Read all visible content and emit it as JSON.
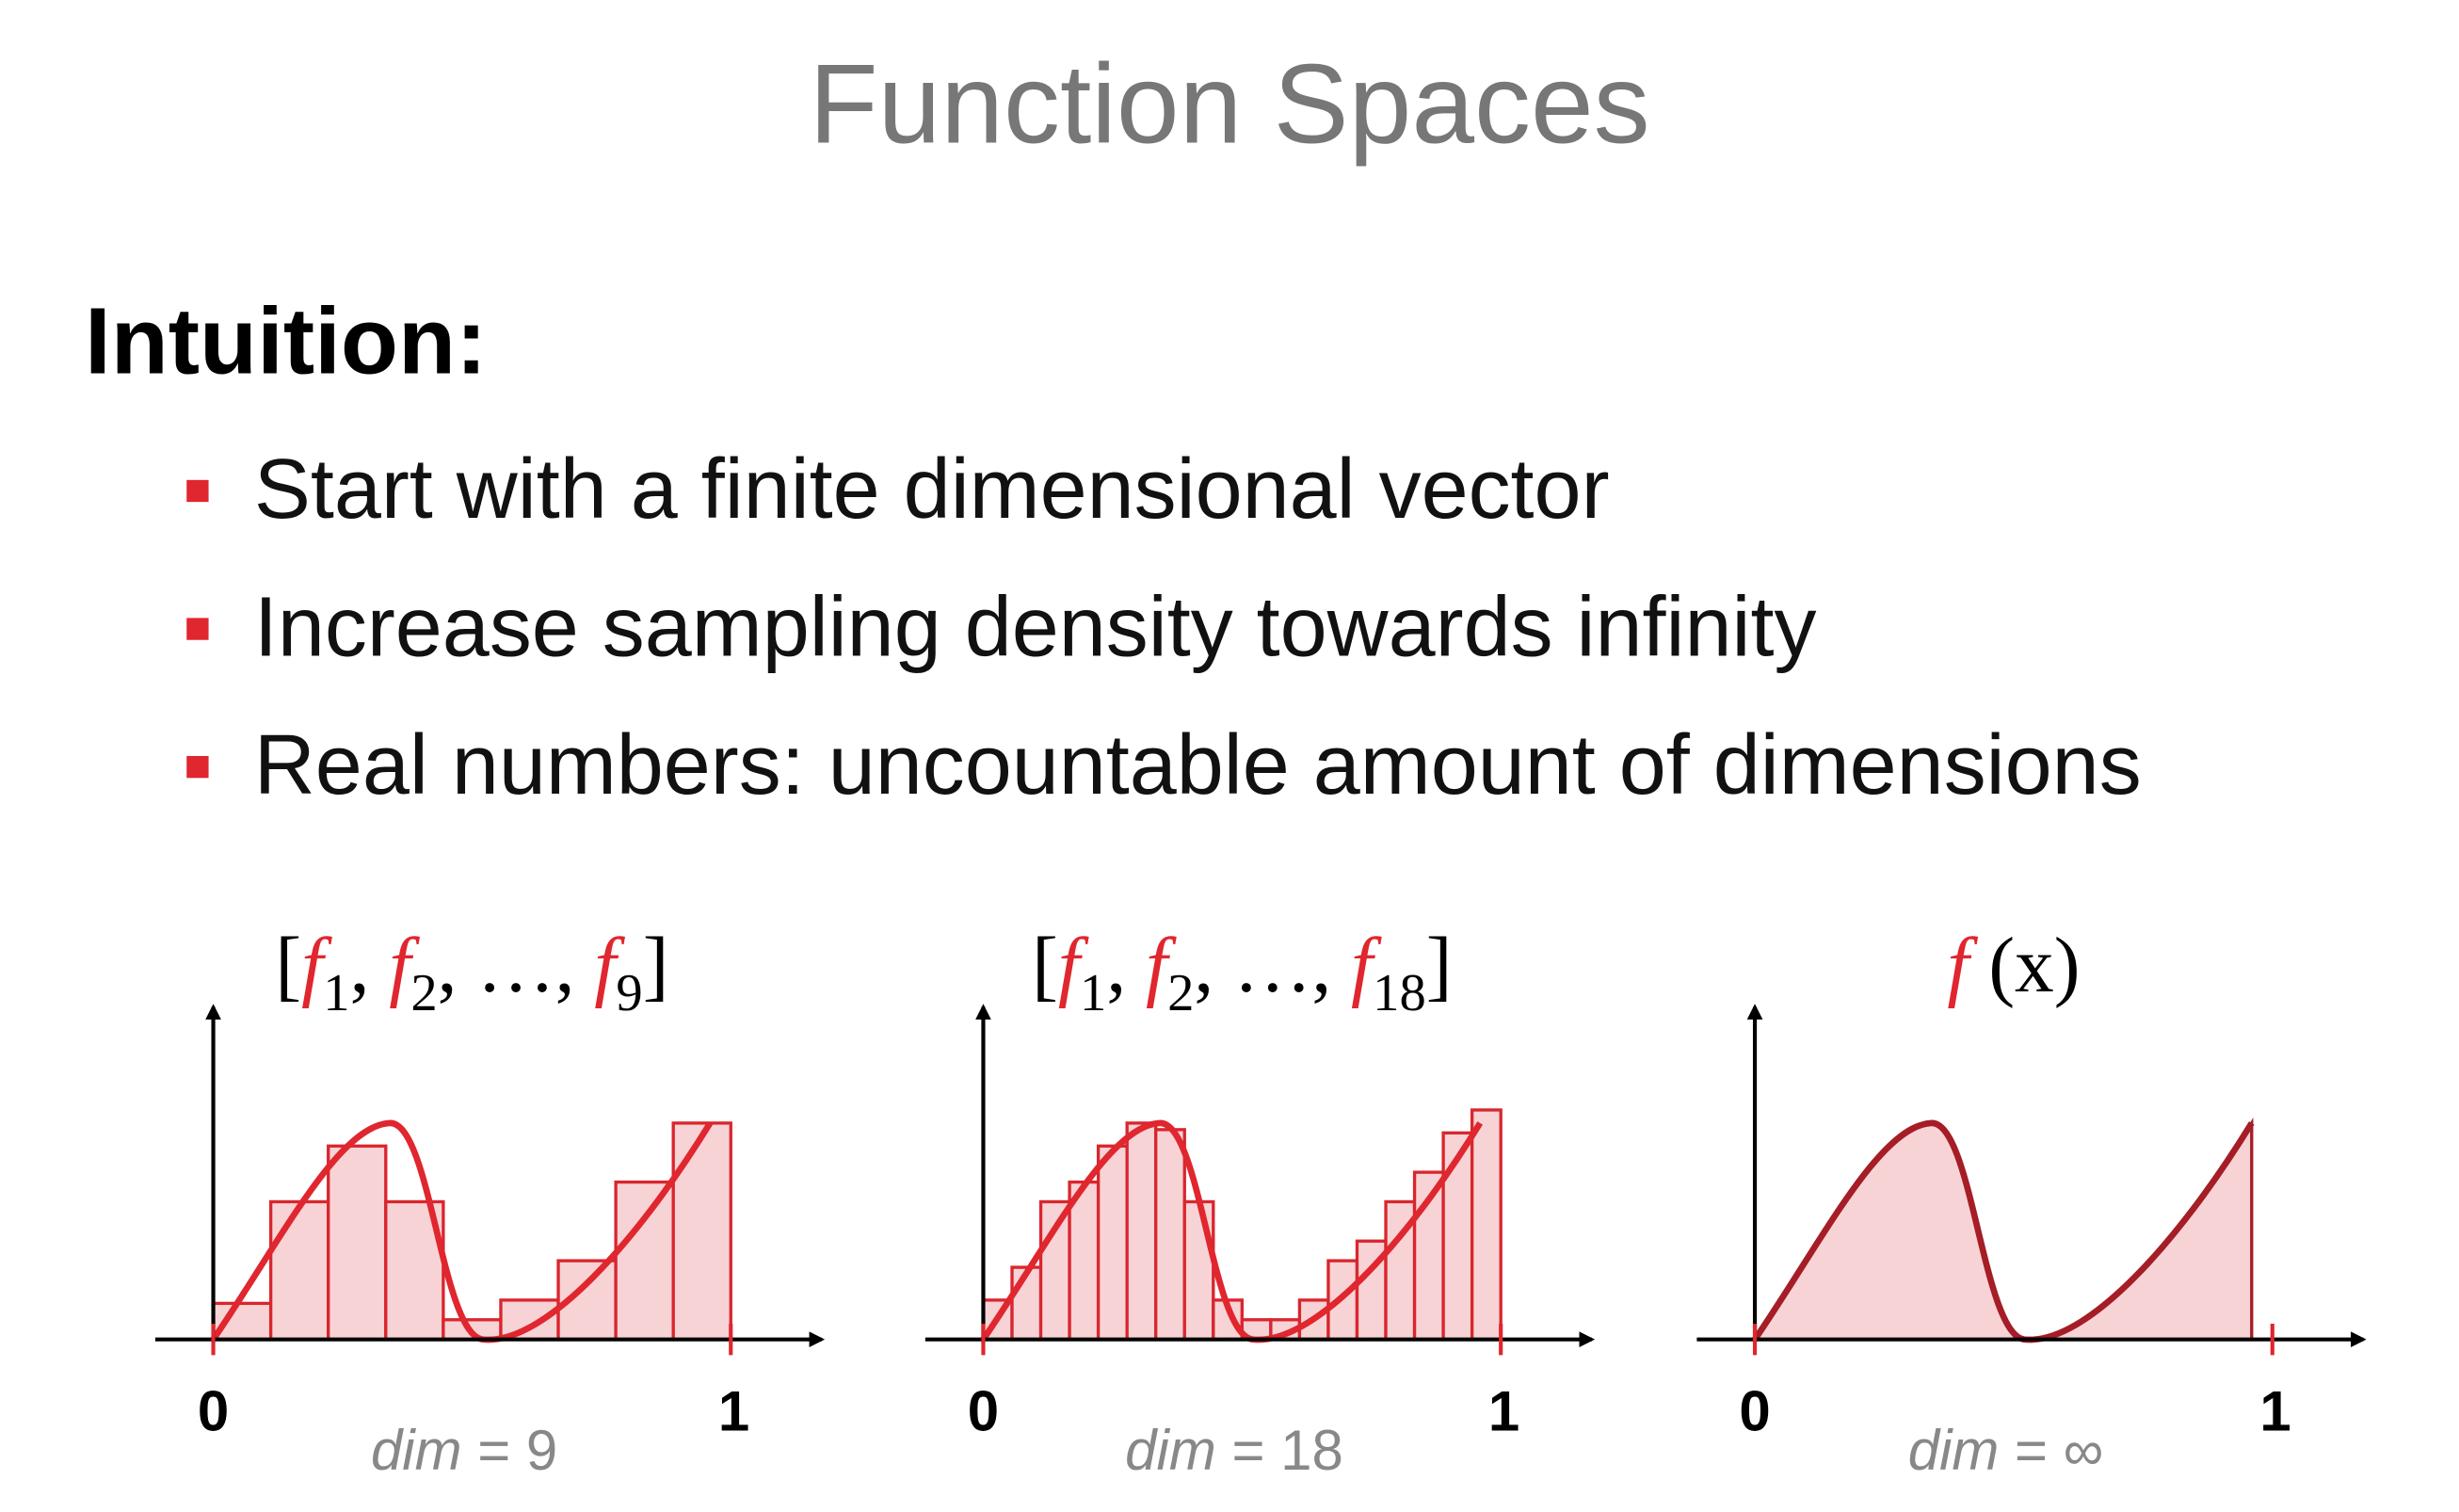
{
  "title": "Function Spaces",
  "heading": "Intuition:",
  "bullets": [
    "Start with a finite dimensional vector",
    "Increase sampling density towards infinity",
    "Real numbers: uncountable amount of dimensions"
  ],
  "panels": [
    {
      "style": "bars",
      "label": [
        {
          "t": "[",
          "s": "plain"
        },
        {
          "t": "f",
          "s": "fn"
        },
        {
          "t": "1",
          "s": "sub"
        },
        {
          "t": ", ",
          "s": "plain"
        },
        {
          "t": "f",
          "s": "fn"
        },
        {
          "t": "2",
          "s": "sub"
        },
        {
          "t": ", …, ",
          "s": "plain"
        },
        {
          "t": "f",
          "s": "fn"
        },
        {
          "t": "9",
          "s": "sub"
        },
        {
          "t": "]",
          "s": "plain"
        }
      ],
      "bars": [
        0.11,
        0.42,
        0.59,
        0.42,
        0.06,
        0.12,
        0.24,
        0.48,
        0.66
      ],
      "x_start": "0",
      "x_end": "1",
      "caption": [
        {
          "t": "dim",
          "s": "var"
        },
        {
          "t": " = 9",
          "s": "plain"
        }
      ]
    },
    {
      "style": "bars",
      "label": [
        {
          "t": "[",
          "s": "plain"
        },
        {
          "t": "f",
          "s": "fn"
        },
        {
          "t": "1",
          "s": "sub"
        },
        {
          "t": ", ",
          "s": "plain"
        },
        {
          "t": "f",
          "s": "fn"
        },
        {
          "t": "2",
          "s": "sub"
        },
        {
          "t": ", …, ",
          "s": "plain"
        },
        {
          "t": "f",
          "s": "fn"
        },
        {
          "t": "18",
          "s": "sub"
        },
        {
          "t": "]",
          "s": "plain"
        }
      ],
      "bars": [
        0.12,
        0.22,
        0.42,
        0.48,
        0.59,
        0.66,
        0.64,
        0.42,
        0.12,
        0.06,
        0.06,
        0.12,
        0.24,
        0.3,
        0.42,
        0.51,
        0.63,
        0.7
      ],
      "x_start": "0",
      "x_end": "1",
      "caption": [
        {
          "t": "dim",
          "s": "var"
        },
        {
          "t": " = 18",
          "s": "plain"
        }
      ]
    },
    {
      "style": "area",
      "label": [
        {
          "t": "f",
          "s": "fn"
        },
        {
          "t": " (x)",
          "s": "plain"
        }
      ],
      "x_start": "0",
      "x_end": "1",
      "caption": [
        {
          "t": "dim",
          "s": "var"
        },
        {
          "t": " = ∞",
          "s": "plain"
        }
      ]
    }
  ]
}
